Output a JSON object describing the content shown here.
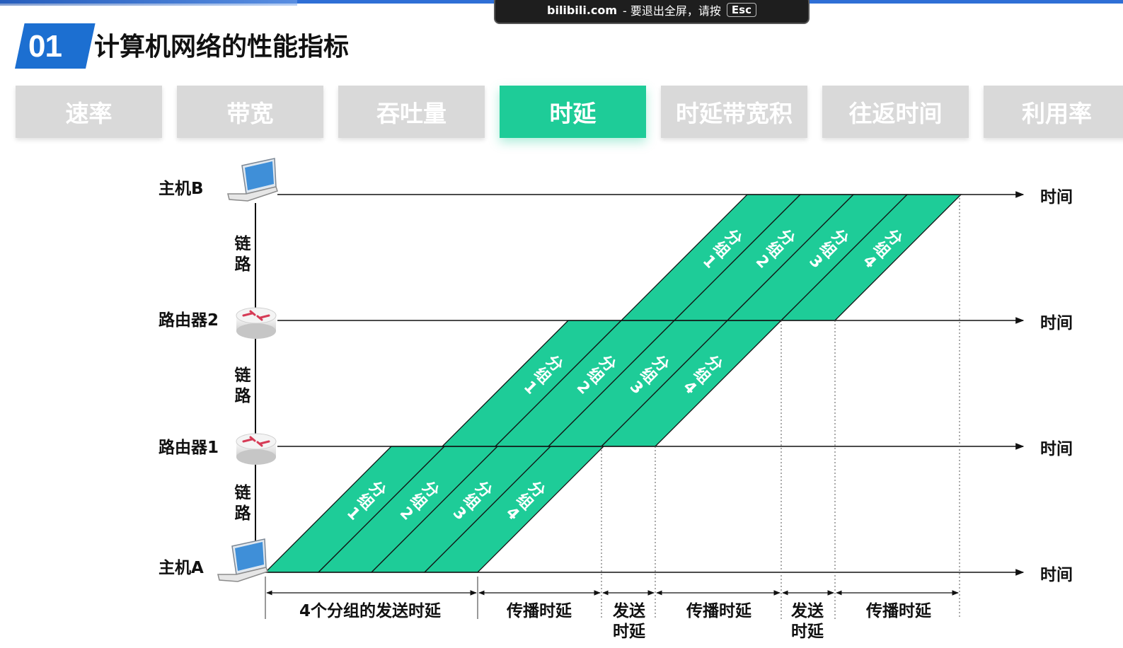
{
  "overlay": {
    "site": "bilibili.com",
    "message": "- 要退出全屏，请按",
    "key": "Esc"
  },
  "header": {
    "number": "01",
    "title": "计算机网络的性能指标"
  },
  "tabs": [
    {
      "label": "速率",
      "active": false
    },
    {
      "label": "带宽",
      "active": false
    },
    {
      "label": "吞吐量",
      "active": false
    },
    {
      "label": "时延",
      "active": true
    },
    {
      "label": "时延带宽积",
      "active": false
    },
    {
      "label": "往返时间",
      "active": false
    },
    {
      "label": "利用率",
      "active": false
    }
  ],
  "diagram": {
    "nodes": [
      {
        "id": "hostB",
        "label": "主机B",
        "icon": "laptop-icon"
      },
      {
        "id": "router2",
        "label": "路由器2",
        "icon": "router-icon"
      },
      {
        "id": "router1",
        "label": "路由器1",
        "icon": "router-icon"
      },
      {
        "id": "hostA",
        "label": "主机A",
        "icon": "laptop-icon"
      }
    ],
    "time_label": "时间",
    "link_label": [
      "链",
      "路"
    ],
    "packet_label": [
      "分",
      "组"
    ],
    "packets": [
      "1",
      "2",
      "3",
      "4"
    ],
    "intervals": [
      {
        "label": "4个分组的发送时延",
        "lines": [
          "4个分组的发送时延"
        ]
      },
      {
        "label": "传播时延",
        "lines": [
          "传播时延"
        ]
      },
      {
        "label": "发送时延",
        "lines": [
          "发送",
          "时延"
        ]
      },
      {
        "label": "传播时延",
        "lines": [
          "传播时延"
        ]
      },
      {
        "label": "发送时延",
        "lines": [
          "发送",
          "时延"
        ]
      },
      {
        "label": "传播时延",
        "lines": [
          "传播时延"
        ]
      }
    ],
    "colors": {
      "packet_fill": "#1ecc98",
      "tab_active": "#1ecc98",
      "tab_inactive": "#d9d9d9",
      "badge": "#1c6fd1"
    }
  }
}
